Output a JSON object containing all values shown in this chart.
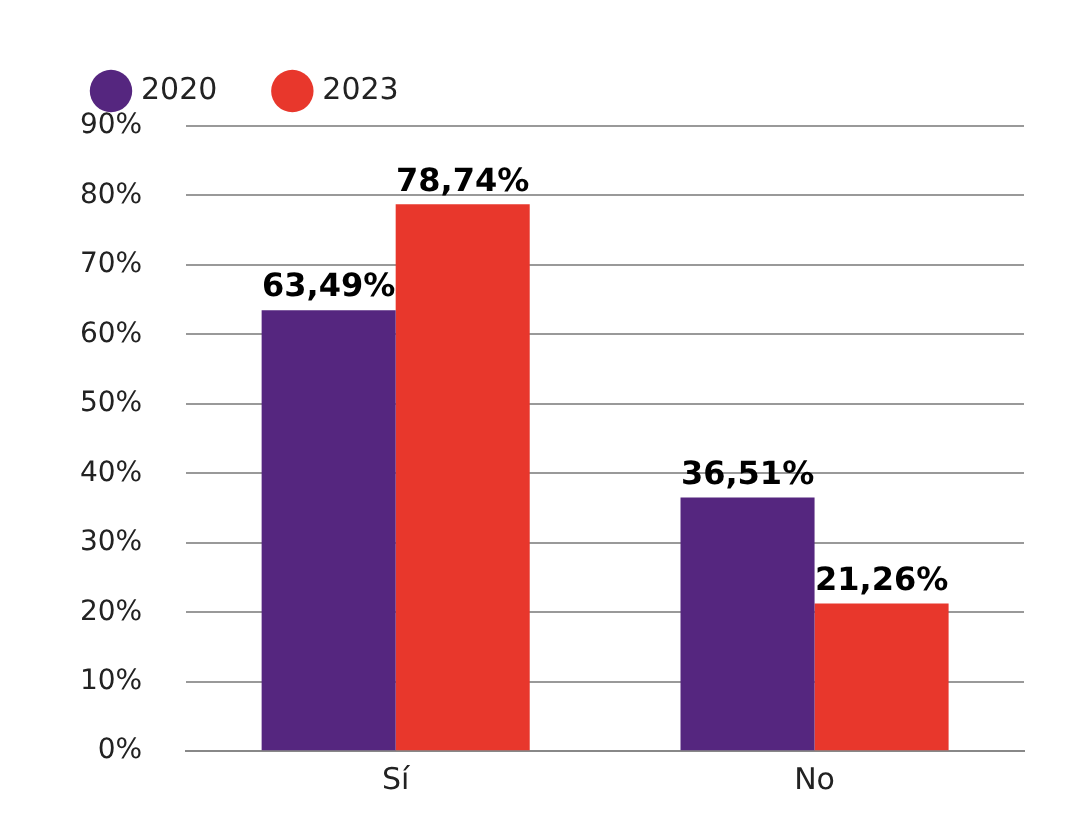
{
  "chart_data": {
    "type": "bar",
    "categories": [
      "Sí",
      "No"
    ],
    "series": [
      {
        "name": "2020",
        "color": "#55267f",
        "values": [
          63.49,
          36.51
        ],
        "value_labels": [
          "63,49%",
          "36,51%"
        ]
      },
      {
        "name": "2023",
        "color": "#e8372c",
        "values": [
          78.74,
          21.26
        ],
        "value_labels": [
          "78,74%",
          "21,26%"
        ]
      }
    ],
    "ylim": [
      0,
      90
    ],
    "yticks": [
      {
        "value": 0,
        "label": "0%"
      },
      {
        "value": 10,
        "label": "10%"
      },
      {
        "value": 20,
        "label": "20%"
      },
      {
        "value": 30,
        "label": "30%"
      },
      {
        "value": 40,
        "label": "40%"
      },
      {
        "value": 50,
        "label": "50%"
      },
      {
        "value": 60,
        "label": "60%"
      },
      {
        "value": 70,
        "label": "70%"
      },
      {
        "value": 80,
        "label": "80%"
      },
      {
        "value": 90,
        "label": "90%"
      }
    ],
    "grid": "y",
    "legend": "top left"
  }
}
